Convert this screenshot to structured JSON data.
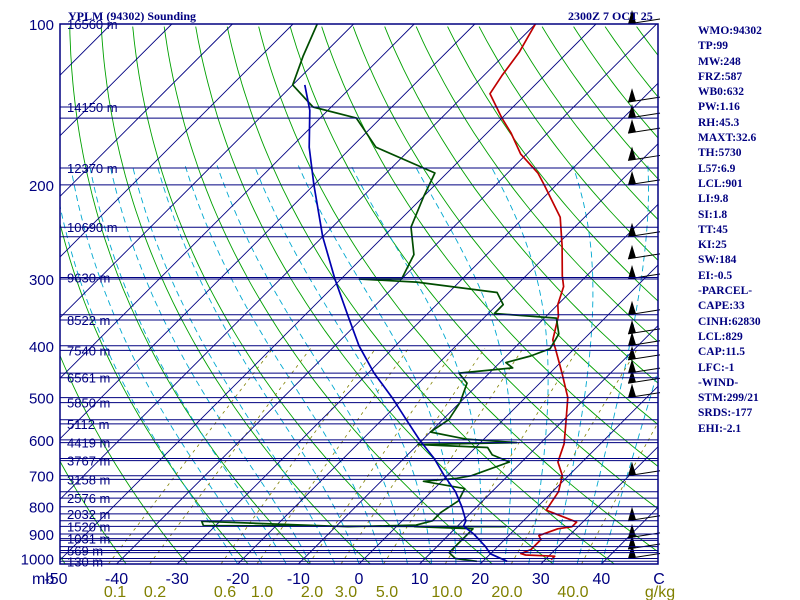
{
  "colors": {
    "frame": "#000080",
    "isotherm": "#000080",
    "dry_adiabat": "#00a000",
    "moist_adiabat": "#00a8d0",
    "mixing_ratio": "#808000",
    "temperature": "#c00000",
    "dewpoint": "#004d00",
    "parcel": "#0000b0",
    "wind": "#000000",
    "text": "#000080"
  },
  "header": {
    "station": "YPLM (94302) Sounding",
    "time": "2300Z  7 OCT 25"
  },
  "stats": [
    "WMO:94302",
    "TP:99",
    "MW:248",
    "FRZ:587",
    "WB0:632",
    "PW:1.16",
    "RH:45.3",
    "MAXT:32.6",
    "TH:5730",
    "L57:6.9",
    "LCL:901",
    "LI:9.8",
    "SI:1.8",
    "TT:45",
    "KI:25",
    "SW:184",
    "EI:-0.5",
    "-PARCEL-",
    "CAPE:33",
    "CINH:62830",
    "LCL:829",
    "CAP:11.5",
    "LFC:-1",
    "-WIND-",
    "STM:299/21",
    "SRDS:-177",
    "EHI:-2.1"
  ],
  "chart_data": {
    "type": "line",
    "title": "YPLM (94302) Sounding",
    "subtitle": "2300Z  7 OCT 25",
    "diagram": "skew-T log-P",
    "y_axis": {
      "unit_label": "mb",
      "scale": "log",
      "range": [
        1000,
        100
      ],
      "ticks": [
        1000,
        900,
        800,
        700,
        600,
        500,
        400,
        300,
        200,
        100
      ]
    },
    "x_axis": {
      "unit_label": "C",
      "ticks": [
        -50,
        -40,
        -30,
        -20,
        -10,
        0,
        10,
        20,
        30,
        40
      ]
    },
    "height_labels": [
      {
        "p": 100,
        "label": "16560 m"
      },
      {
        "p": 143,
        "label": "14150 m"
      },
      {
        "p": 186,
        "label": "12370 m"
      },
      {
        "p": 240,
        "label": "10690 m"
      },
      {
        "p": 298,
        "label": "9630 m"
      },
      {
        "p": 358,
        "label": "8522 m"
      },
      {
        "p": 408,
        "label": "7540 m"
      },
      {
        "p": 459,
        "label": "6561 m"
      },
      {
        "p": 511,
        "label": "5850 m"
      },
      {
        "p": 560,
        "label": "5112 m"
      },
      {
        "p": 607,
        "label": "4419 m"
      },
      {
        "p": 656,
        "label": "3767 m"
      },
      {
        "p": 711,
        "label": "3158 m"
      },
      {
        "p": 771,
        "label": "2576 m"
      },
      {
        "p": 825,
        "label": "2032 m"
      },
      {
        "p": 871,
        "label": "1520 m"
      },
      {
        "p": 918,
        "label": "1031 m"
      },
      {
        "p": 966,
        "label": "569 m"
      },
      {
        "p": 1012,
        "label": "130 m"
      }
    ],
    "mixing_ratio_labels": [
      "0.1",
      "0.2",
      "0.6",
      "1.0",
      "2.0",
      "3.0",
      "5.0",
      "10.0",
      "20.0",
      "40.0"
    ],
    "mixing_ratio_unit": "g/kg",
    "series": [
      {
        "key": "temperature",
        "points": [
          [
            1005,
            31
          ],
          [
            990,
            31
          ],
          [
            985,
            26
          ],
          [
            979,
            25
          ],
          [
            962,
            26
          ],
          [
            942,
            26
          ],
          [
            922,
            26
          ],
          [
            906,
            25
          ],
          [
            880,
            27
          ],
          [
            872,
            29
          ],
          [
            855,
            29
          ],
          [
            812,
            22
          ],
          [
            750,
            21
          ],
          [
            700,
            19
          ],
          [
            660,
            16
          ],
          [
            610,
            14
          ],
          [
            560,
            11
          ],
          [
            500,
            7
          ],
          [
            450,
            2
          ],
          [
            406,
            -3
          ],
          [
            390,
            -5
          ],
          [
            352,
            -8
          ],
          [
            335,
            -10
          ],
          [
            310,
            -12
          ],
          [
            296,
            -14
          ],
          [
            260,
            -19
          ],
          [
            230,
            -24
          ],
          [
            200,
            -32
          ],
          [
            190,
            -35
          ],
          [
            175,
            -41
          ],
          [
            160,
            -46
          ],
          [
            150,
            -50
          ],
          [
            135,
            -56
          ],
          [
            125,
            -57
          ],
          [
            113,
            -58
          ],
          [
            100,
            -60
          ]
        ]
      },
      {
        "key": "dewpoint",
        "points": [
          [
            1012,
            19
          ],
          [
            1000,
            15
          ],
          [
            975,
            13
          ],
          [
            940,
            13
          ],
          [
            905,
            13
          ],
          [
            880,
            13
          ],
          [
            872,
            3
          ],
          [
            872,
            18
          ],
          [
            868,
            -32
          ],
          [
            852,
            -33
          ],
          [
            872,
            -8
          ],
          [
            866,
            3
          ],
          [
            850,
            5
          ],
          [
            820,
            5
          ],
          [
            780,
            6
          ],
          [
            740,
            5
          ],
          [
            717,
            -3
          ],
          [
            708,
            2
          ],
          [
            700,
            4
          ],
          [
            660,
            8
          ],
          [
            640,
            4
          ],
          [
            620,
            2
          ],
          [
            612,
            -10
          ],
          [
            607,
            6
          ],
          [
            598,
            -3
          ],
          [
            580,
            -10
          ],
          [
            550,
            -9
          ],
          [
            510,
            -10
          ],
          [
            470,
            -12
          ],
          [
            450,
            -15
          ],
          [
            440,
            -7
          ],
          [
            430,
            -9
          ],
          [
            418,
            -6
          ],
          [
            405,
            -4
          ],
          [
            380,
            -5
          ],
          [
            355,
            -8
          ],
          [
            348,
            -19
          ],
          [
            335,
            -19
          ],
          [
            318,
            -22
          ],
          [
            304,
            -37
          ],
          [
            300,
            -47
          ],
          [
            300,
            -40
          ],
          [
            270,
            -42
          ],
          [
            240,
            -47
          ],
          [
            210,
            -50
          ],
          [
            190,
            -52
          ],
          [
            170,
            -66
          ],
          [
            150,
            -74
          ],
          [
            143,
            -83
          ],
          [
            130,
            -90
          ],
          [
            115,
            -93
          ],
          [
            100,
            -96
          ]
        ]
      },
      {
        "key": "parcel",
        "points": [
          [
            1012,
            24
          ],
          [
            980,
            20
          ],
          [
            950,
            18
          ],
          [
            900,
            14
          ],
          [
            870,
            11
          ],
          [
            850,
            10.5
          ],
          [
            800,
            7.5
          ],
          [
            750,
            4
          ],
          [
            700,
            -0.5
          ],
          [
            650,
            -5
          ],
          [
            600,
            -10.5
          ],
          [
            550,
            -16
          ],
          [
            500,
            -22
          ],
          [
            450,
            -29
          ],
          [
            400,
            -36
          ],
          [
            350,
            -43
          ],
          [
            300,
            -51
          ],
          [
            250,
            -60
          ],
          [
            200,
            -70
          ],
          [
            170,
            -77
          ],
          [
            145,
            -83
          ],
          [
            130,
            -88
          ]
        ]
      }
    ],
    "winds_levels_mb": [
      1000,
      960,
      915,
      850,
      700,
      500,
      470,
      450,
      425,
      400,
      380,
      350,
      300,
      275,
      250,
      200,
      180,
      160,
      150,
      140,
      100
    ],
    "grid": true,
    "legend": "none"
  }
}
